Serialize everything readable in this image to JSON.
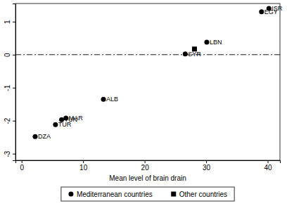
{
  "chart_data": {
    "type": "scatter",
    "x_label": "Mean level of brain drain",
    "xlim": [
      -1,
      42
    ],
    "xticks": [
      0,
      10,
      20,
      30,
      40
    ],
    "ylim": [
      -3.2,
      1.55
    ],
    "yticks": [
      -3,
      -2,
      -1,
      0,
      1
    ],
    "reference_lines": [
      {
        "axis": "y",
        "value": 0,
        "line_style": "dashdot"
      }
    ],
    "legend": "bottom",
    "series": [
      {
        "name": "Mediterranean countries",
        "color": "#000000",
        "marker": "circle",
        "x": [
          40.2,
          39.0,
          30.1,
          26.6,
          13.3,
          7.2,
          6.5,
          5.5,
          2.2
        ],
        "values": [
          1.4,
          1.3,
          0.38,
          0.02,
          -1.35,
          -1.92,
          -1.97,
          -2.12,
          -2.48
        ],
        "labels": [
          "ISR",
          "EGY",
          "LBN",
          "SYR",
          "ALB",
          "MAR",
          "TUN",
          "TUR",
          "DZA"
        ]
      },
      {
        "name": "Other countries",
        "color": "#000000",
        "marker": "square",
        "x": [
          28.1
        ],
        "values": [
          0.17
        ]
      }
    ]
  }
}
